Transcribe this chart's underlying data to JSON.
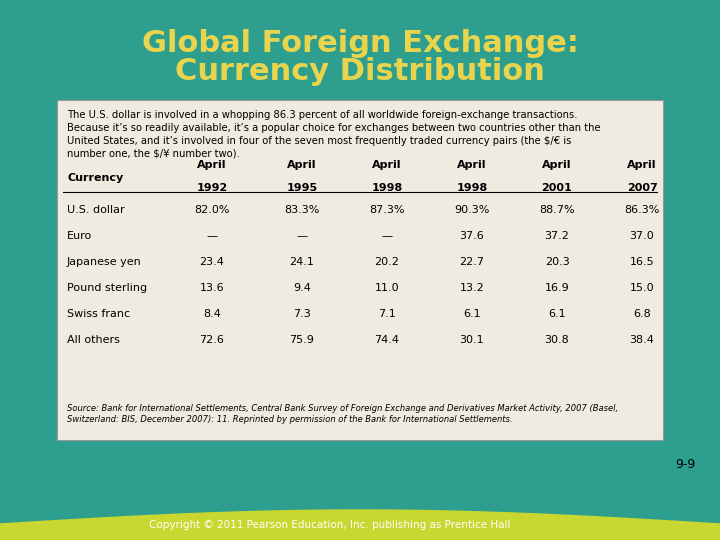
{
  "title_line1": "Global Foreign Exchange:",
  "title_line2": "Currency Distribution",
  "title_color": "#e8d44d",
  "bg_color": "#2e9e8e",
  "table_bg": "#f0ebe0",
  "footer_text": "Copyright © 2011 Pearson Education, Inc. publishing as Prentice Hall",
  "page_num": "9-9",
  "intro_text": "The U.S. dollar is involved in a whopping 86.3 percent of all worldwide foreign-exchange transactions.\nBecause it’s so readily available, it’s a popular choice for exchanges between two countries other than the\nUnited States, and it’s involved in four of the seven most frequently traded currency pairs (the $/€ is\nnumber one, the $/¥ number two).",
  "col_headers": [
    [
      "April",
      "1992"
    ],
    [
      "April",
      "1995"
    ],
    [
      "April",
      "1998"
    ],
    [
      "April",
      "1998"
    ],
    [
      "April",
      "2001"
    ],
    [
      "April",
      "2007"
    ]
  ],
  "row_label": "Currency",
  "currencies": [
    "U.S. dollar",
    "Euro",
    "Japanese yen",
    "Pound sterling",
    "Swiss franc",
    "All others"
  ],
  "data": [
    [
      "82.0%",
      "83.3%",
      "87.3%",
      "90.3%",
      "88.7%",
      "86.3%"
    ],
    [
      "—",
      "—",
      "—",
      "37.6",
      "37.2",
      "37.0"
    ],
    [
      "23.4",
      "24.1",
      "20.2",
      "22.7",
      "20.3",
      "16.5"
    ],
    [
      "13.6",
      "9.4",
      "11.0",
      "13.2",
      "16.9",
      "15.0"
    ],
    [
      "8.4",
      "7.3",
      "7.1",
      "6.1",
      "6.1",
      "6.8"
    ],
    [
      "72.6",
      "75.9",
      "74.4",
      "30.1",
      "30.8",
      "38.4"
    ]
  ],
  "source_text": "Source: Bank for International Settlements, Central Bank Survey of Foreign Exchange and Derivatives Market Activity, 2007 (Basel,\nSwitzerland: BIS, December 2007): 11. Reprinted by permission of the Bank for International Settlements.",
  "footer_bar_color": "#c8d830",
  "footer_bg_color": "#2e9e8e"
}
